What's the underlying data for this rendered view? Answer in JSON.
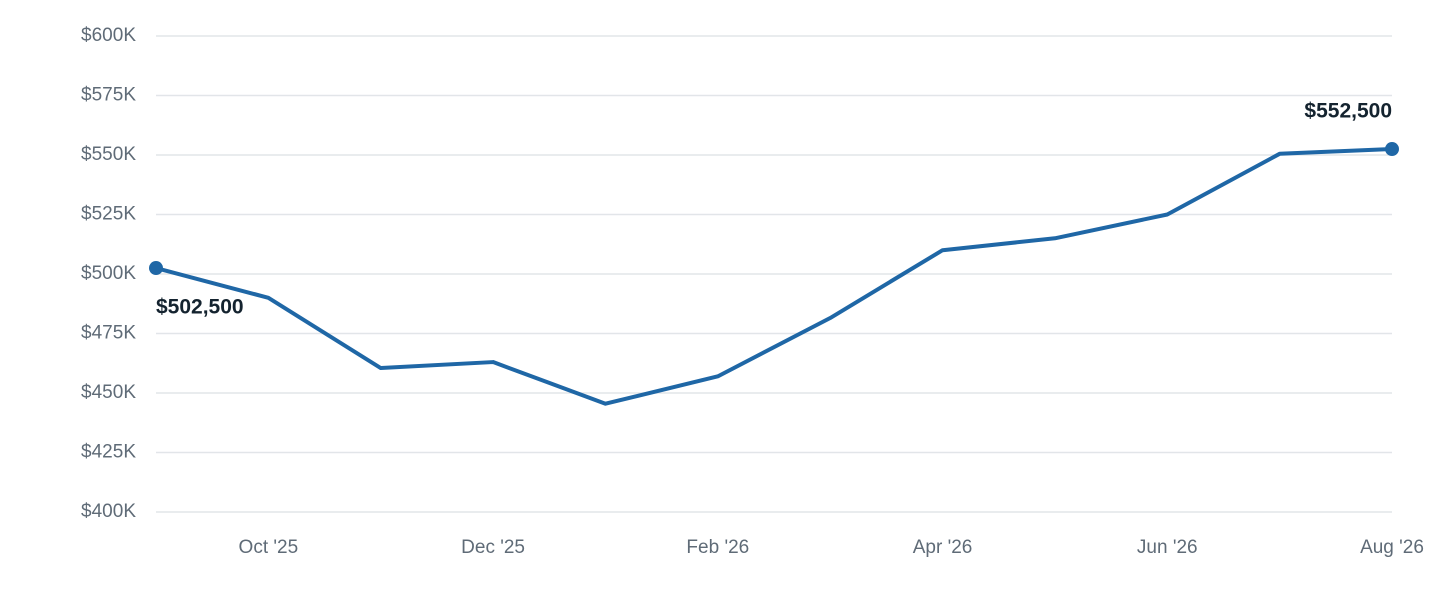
{
  "chart_data": {
    "type": "line",
    "categories": [
      null,
      "Oct '25",
      null,
      "Dec '25",
      null,
      "Feb '26",
      null,
      "Apr '26",
      null,
      "Jun '26",
      null,
      "Aug '26"
    ],
    "values": [
      502500,
      490000,
      460500,
      463000,
      445500,
      457000,
      481500,
      510000,
      515000,
      525000,
      550500,
      552500
    ],
    "value_labels": [
      "$502,500",
      null,
      null,
      null,
      null,
      null,
      null,
      null,
      null,
      null,
      null,
      "$552,500"
    ],
    "color": "#1f67a6",
    "ylim": [
      400000,
      600000
    ],
    "yticks": [
      {
        "value": 400000,
        "label": "$400K"
      },
      {
        "value": 425000,
        "label": "$425K"
      },
      {
        "value": 450000,
        "label": "$450K"
      },
      {
        "value": 475000,
        "label": "$475K"
      },
      {
        "value": 500000,
        "label": "$500K"
      },
      {
        "value": 525000,
        "label": "$525K"
      },
      {
        "value": 550000,
        "label": "$550K"
      },
      {
        "value": 575000,
        "label": "$575K"
      },
      {
        "value": 600000,
        "label": "$600K"
      }
    ],
    "grid": true
  }
}
